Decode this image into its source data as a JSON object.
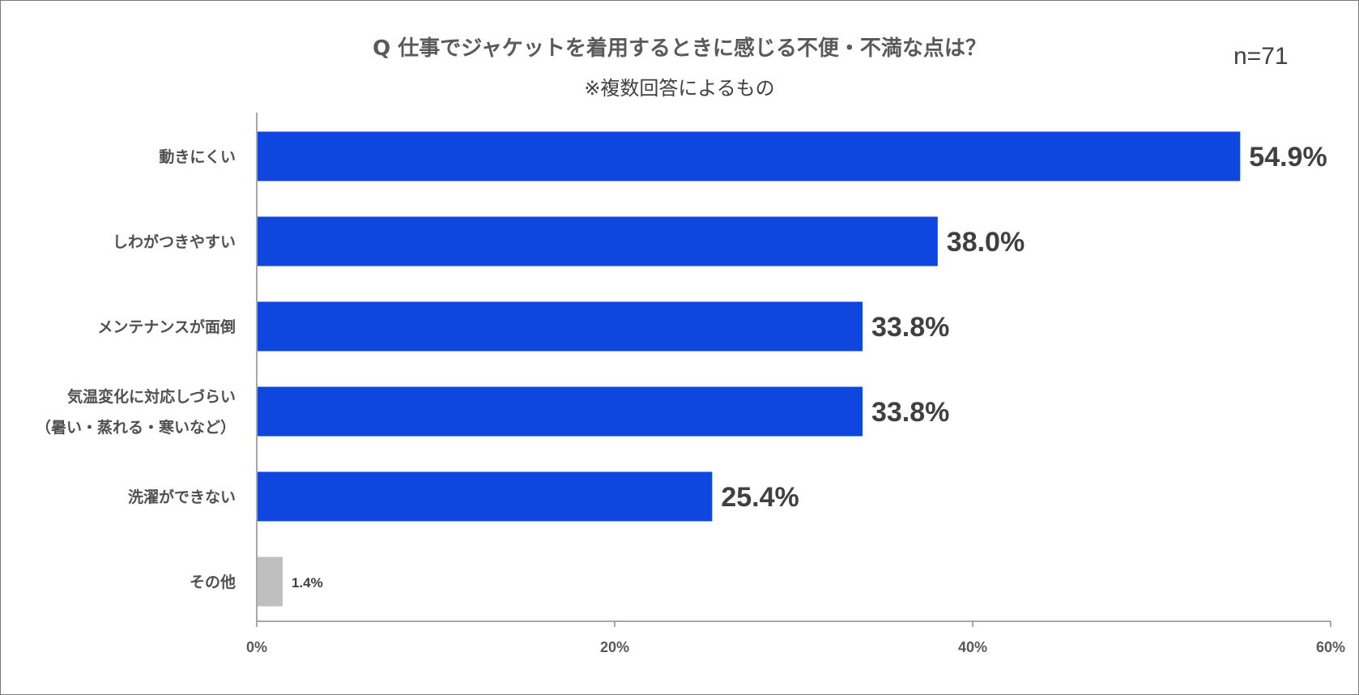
{
  "chart_data": {
    "type": "bar",
    "orientation": "horizontal",
    "title": "Q 仕事でジャケットを着用するときに感じる不便・不満な点は？",
    "subtitle": "※複数回答によるもの",
    "sample_size": "n=71",
    "categories": [
      [
        "動きにくい"
      ],
      [
        "しわがつきやすい"
      ],
      [
        "メンテナンスが面倒"
      ],
      [
        "気温変化に対応しづらい",
        "（暑い・蒸れる・寒いなど）"
      ],
      [
        "洗濯ができない"
      ],
      [
        "その他"
      ]
    ],
    "values": [
      54.9,
      38.0,
      33.8,
      33.8,
      25.4,
      1.4
    ],
    "value_labels": [
      "54.9%",
      "38.0%",
      "33.8%",
      "33.8%",
      "25.4%",
      "1.4%"
    ],
    "bar_colors": [
      "#1046e0",
      "#1046e0",
      "#1046e0",
      "#1046e0",
      "#1046e0",
      "#bfbfbf"
    ],
    "x_ticks": [
      0,
      20,
      40,
      60
    ],
    "x_tick_labels": [
      "0%",
      "20%",
      "40%",
      "60%"
    ],
    "xlim": [
      0,
      60
    ],
    "xlabel": "",
    "ylabel": "",
    "grid": false,
    "legend": "none"
  }
}
